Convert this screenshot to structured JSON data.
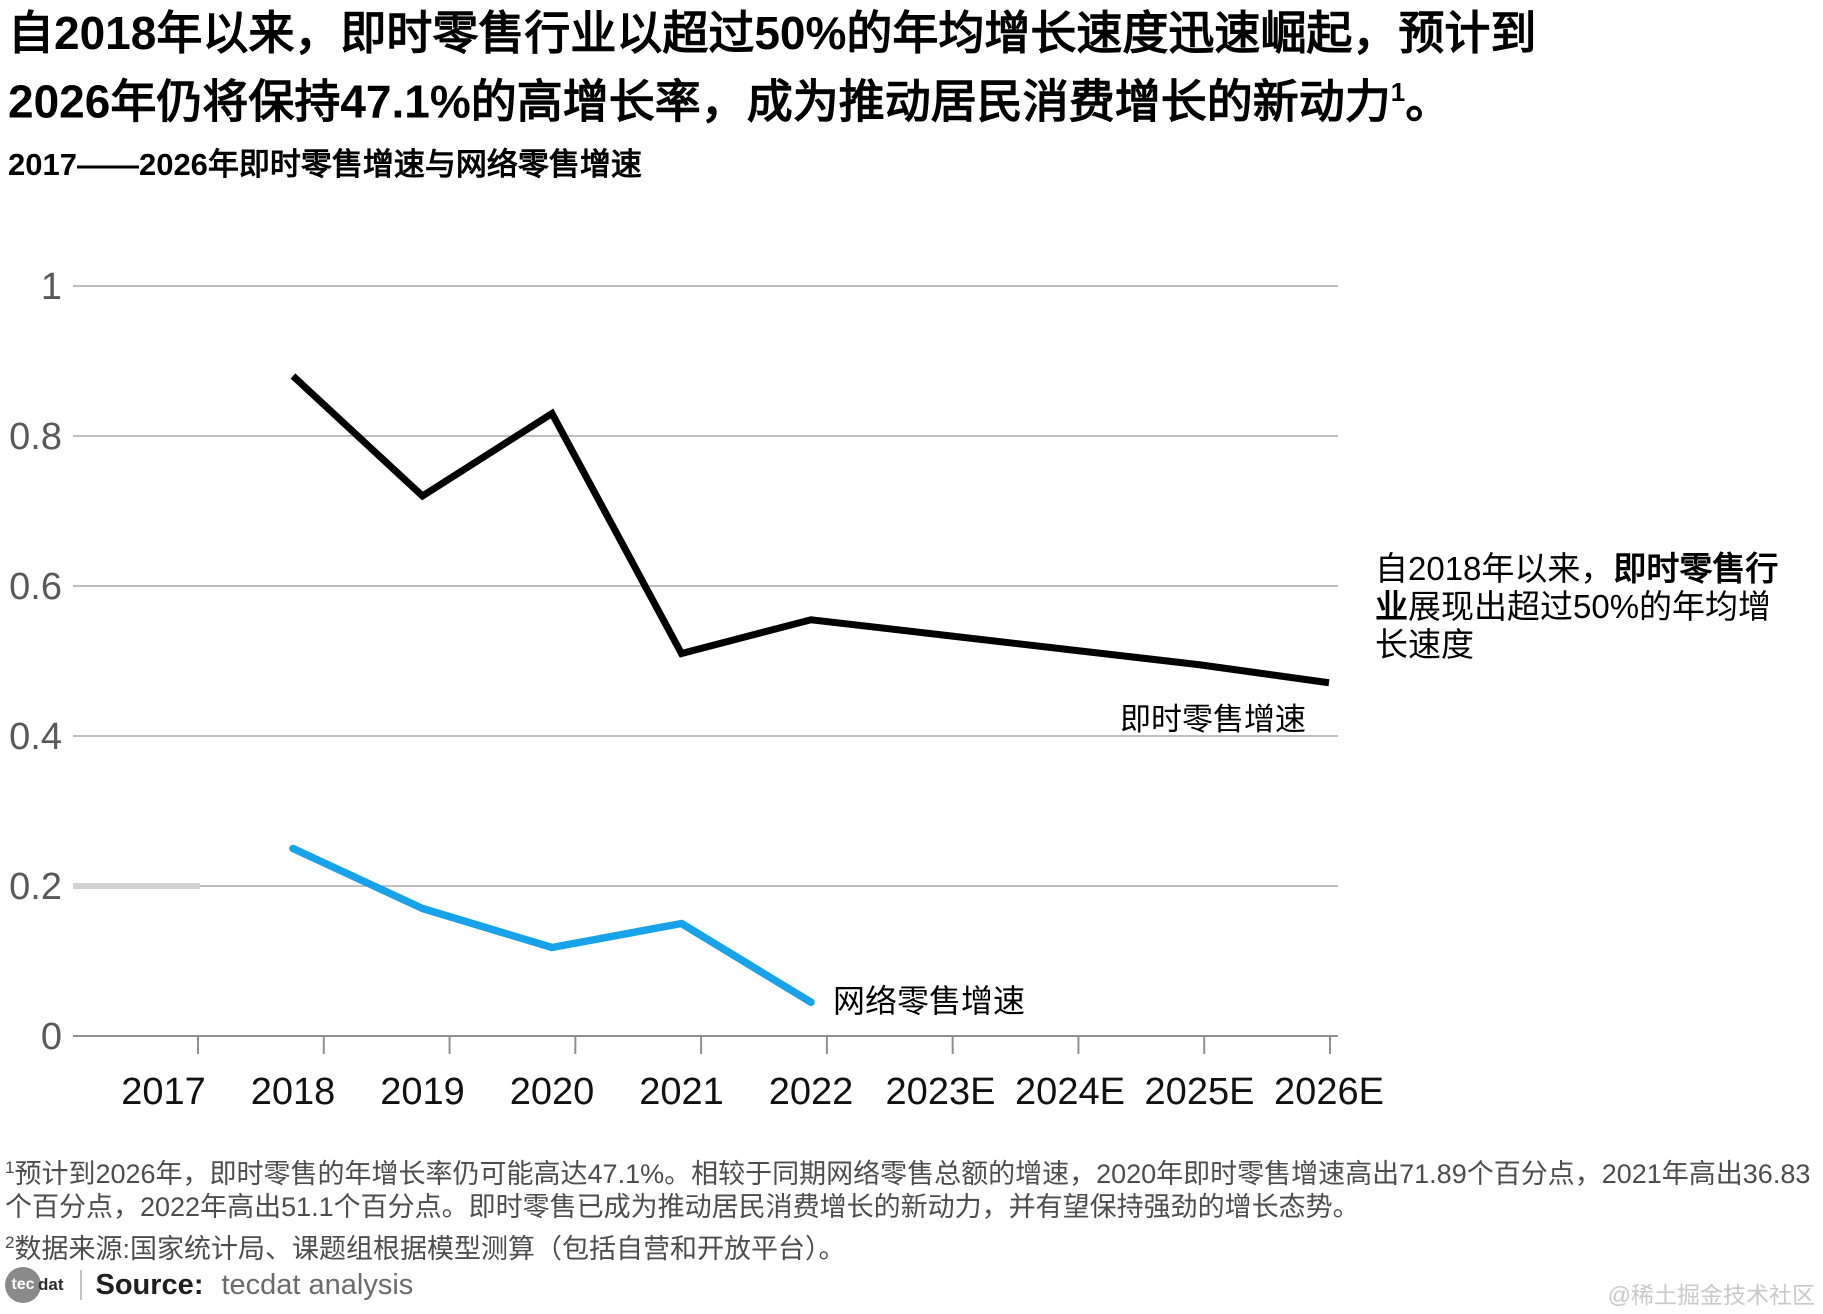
{
  "page": {
    "title_line1": "自2018年以来，即时零售行业以超过50%的年均增长速度迅速崛起，预计到",
    "title_line2": "2026年仍将保持47.1%的高增长率，成为推动居民消费增长的新动力",
    "title_superscript": "1",
    "title_period": "。",
    "watermark": "@稀土掘金技术社区"
  },
  "chart": {
    "title": "2017——2026年即时零售增速与网络零售增速",
    "instant_series_label": "即时零售增速",
    "online_series_label": "网络零售增速"
  },
  "annotation": {
    "lines": [
      [
        {
          "text": "自2018年以来，",
          "bold": false
        },
        {
          "text": "即时零售行",
          "bold": true
        }
      ],
      [
        {
          "text": "业",
          "bold": true
        },
        {
          "text": "展现出超过50%的年均增",
          "bold": false
        }
      ],
      [
        {
          "text": "长速度",
          "bold": false
        }
      ]
    ]
  },
  "footnotes": [
    {
      "sup": "1",
      "text": "预计到2026年，即时零售的年增长率仍可能高达47.1%。相较于同期网络零售总额的增速，2020年即时零售增速高出71.89个百分点，2021年高出36.83个百分点，2022年高出51.1个百分点。即时零售已成为推动居民消费增长的新动力，并有望保持强劲的增长态势。"
    },
    {
      "sup": "2",
      "text": "数据来源:国家统计局、课题组根据模型测算（包括自营和开放平台）。"
    }
  ],
  "source": {
    "logo_circle_text": "tec",
    "logo_suffix": "dat",
    "label": "Source:",
    "value": "tecdat analysis"
  },
  "chart_data": {
    "type": "line",
    "title": "2017——2026年即时零售增速与网络零售增速",
    "categories": [
      "2017",
      "2018",
      "2019",
      "2020",
      "2021",
      "2022",
      "2023E",
      "2024E",
      "2025E",
      "2026E"
    ],
    "series": [
      {
        "name": "即时零售增速",
        "color": "#000000",
        "stroke_width": 7,
        "linejoin": "miter",
        "values": [
          null,
          0.88,
          0.72,
          0.83,
          0.51,
          0.555,
          0.535,
          0.515,
          0.495,
          0.471
        ]
      },
      {
        "name": "网络零售增速",
        "color": "#18a2e9",
        "stroke_width": 7.5,
        "linejoin": "round",
        "values": [
          null,
          0.25,
          0.17,
          0.118,
          0.15,
          0.045,
          null,
          null,
          null,
          null
        ]
      }
    ],
    "ylim": [
      0,
      1
    ],
    "yticks": [
      0,
      0.2,
      0.4,
      0.6,
      0.8,
      1
    ],
    "ytick_labels": [
      "0",
      "0.2",
      "0.4",
      "0.6",
      "0.8",
      "1"
    ],
    "grid": "horizontal",
    "legend": "inline-labels",
    "highlight_segment": {
      "y_value": 0.2,
      "note": "light gray thick segment at left of 0.2 gridline"
    },
    "colors": {
      "grid": "#a9a9a9",
      "axis": "#8f8f8f",
      "y_tick_label": "#595959",
      "x_tick_label": "#111111",
      "highlight_segment": "#d2d2d2"
    }
  }
}
